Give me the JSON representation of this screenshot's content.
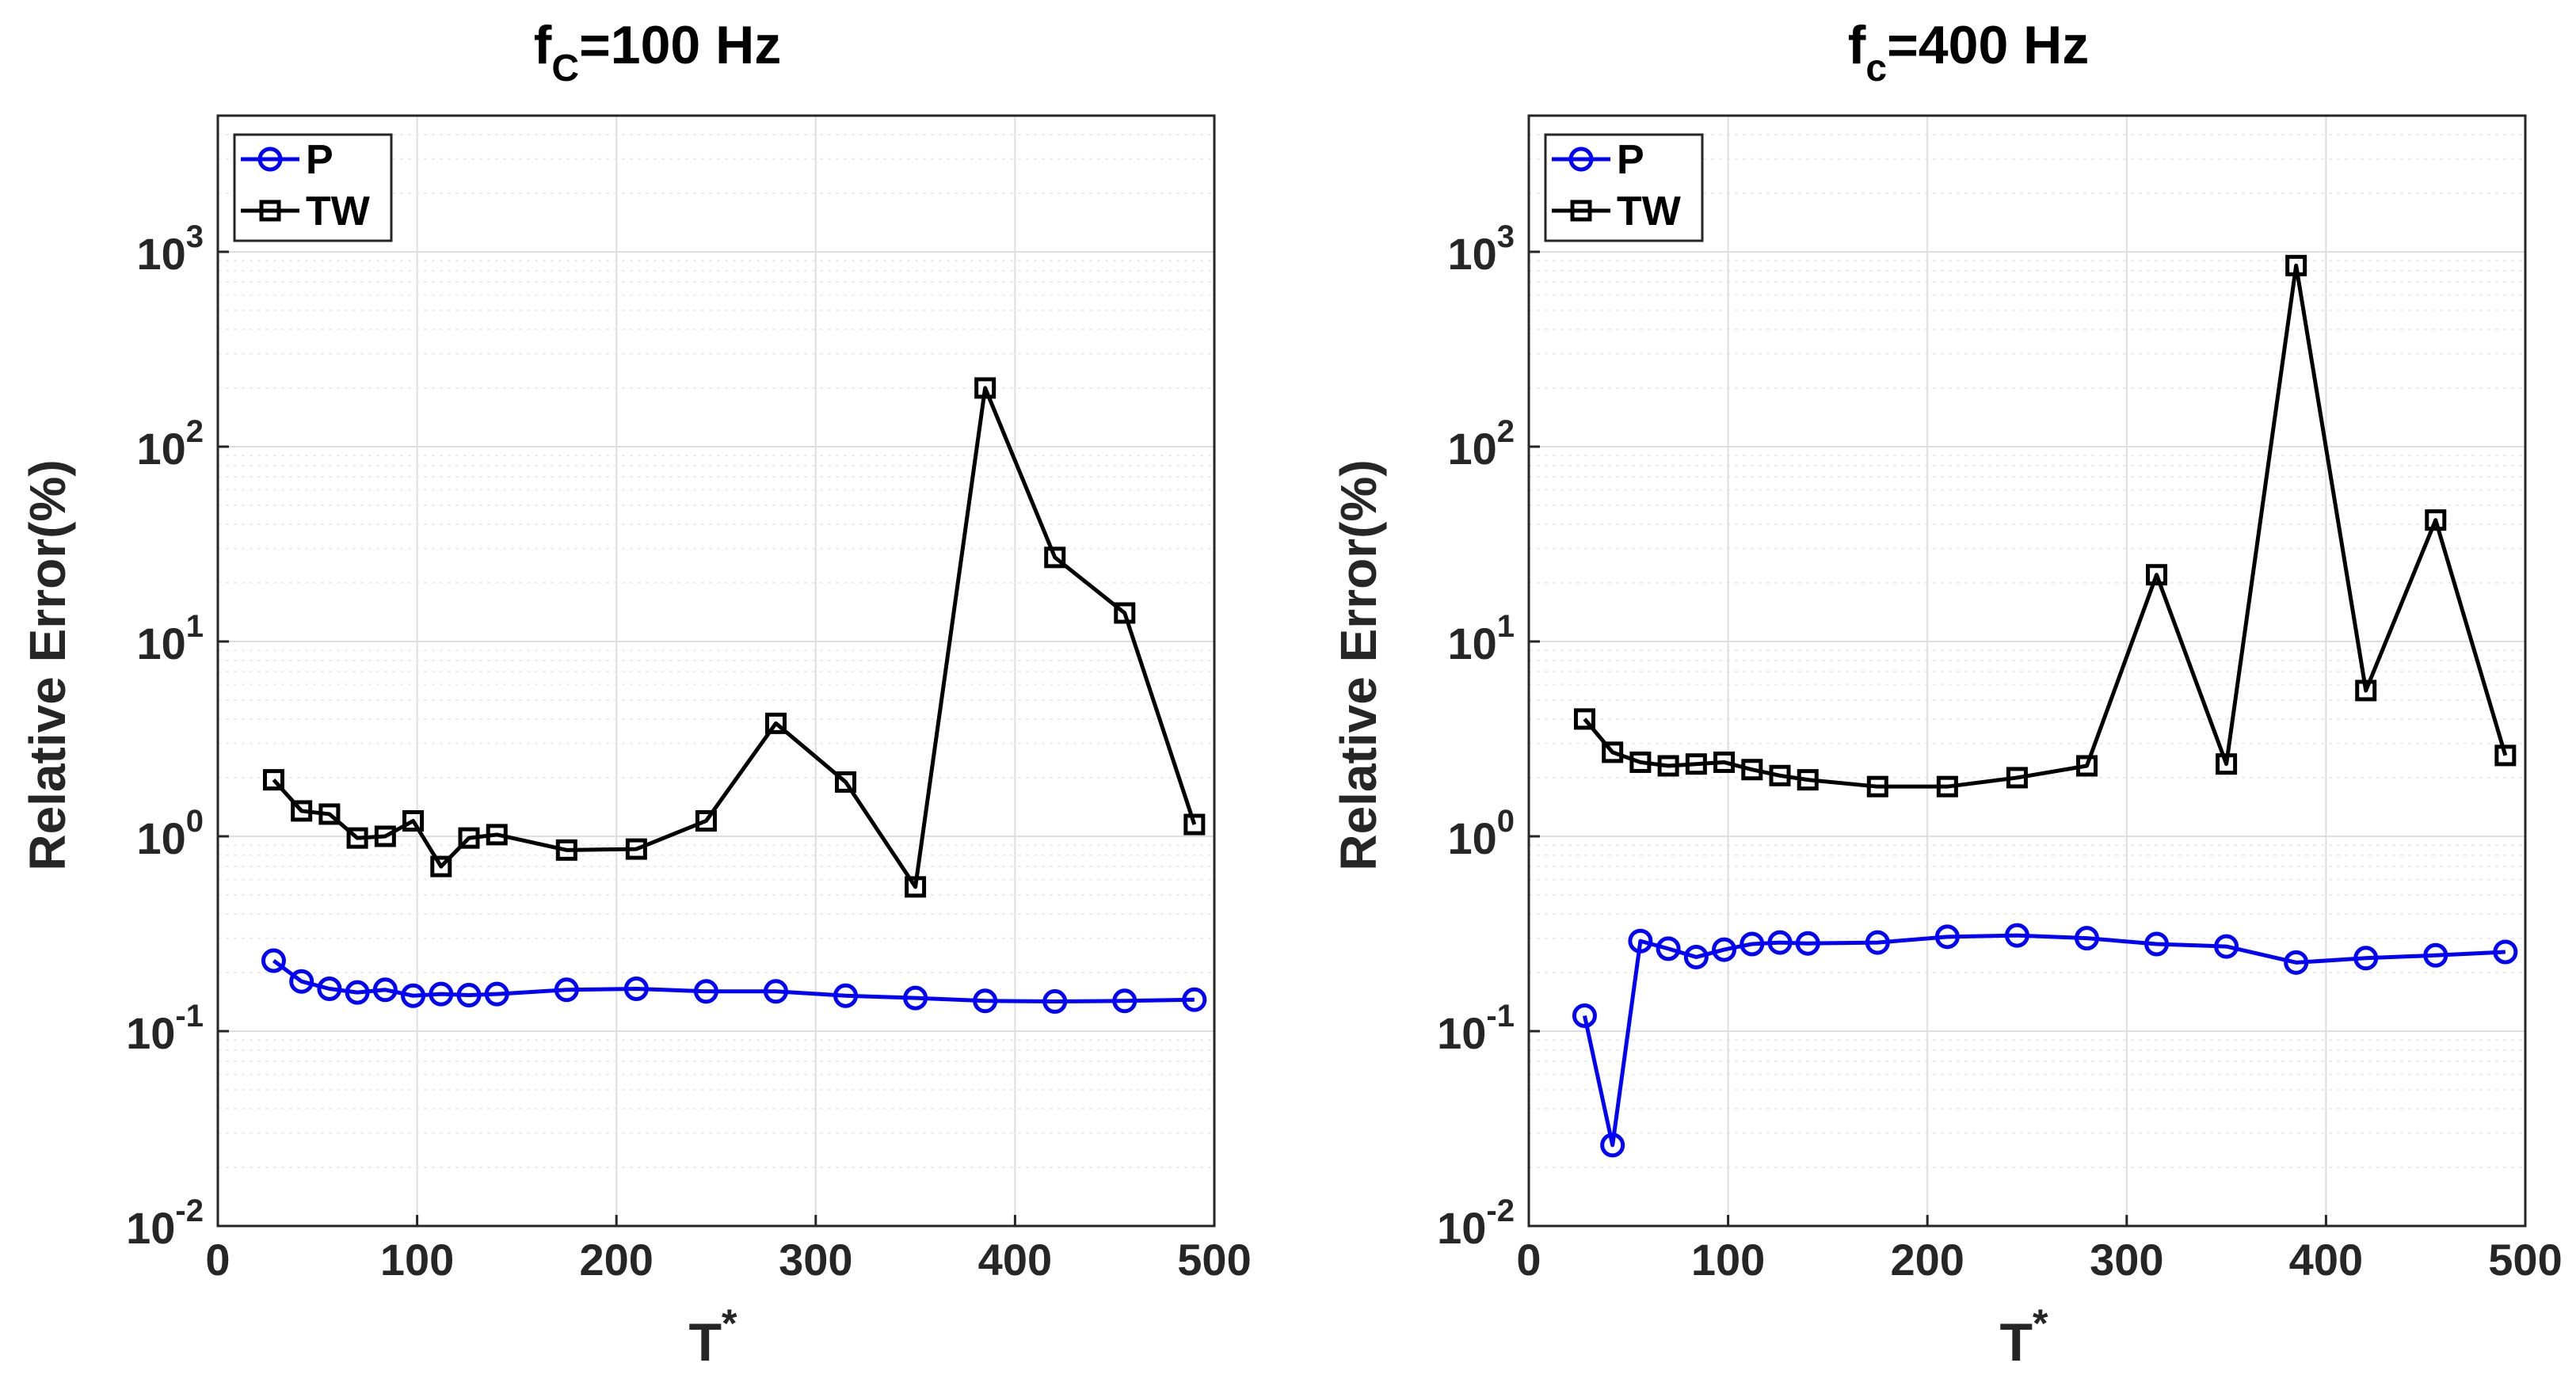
{
  "chart_data": [
    {
      "type": "line",
      "title_main": "f",
      "title_sub": "C",
      "title_rest": "=100 Hz",
      "xlabel_main": "T",
      "xlabel_sup": "*",
      "ylabel": "Relative Error(%)",
      "xlim": [
        0,
        500
      ],
      "ylim": [
        0.01,
        5000
      ],
      "yscale": "log",
      "grid": true,
      "legend_position": "top-left",
      "x_ticks": [
        "0",
        "100",
        "200",
        "300",
        "400",
        "500"
      ],
      "y_ticks": [
        {
          "base": "10",
          "exp": "-2",
          "value": 0.01
        },
        {
          "base": "10",
          "exp": "-1",
          "value": 0.1
        },
        {
          "base": "10",
          "exp": "0",
          "value": 1
        },
        {
          "base": "10",
          "exp": "1",
          "value": 10
        },
        {
          "base": "10",
          "exp": "2",
          "value": 100
        },
        {
          "base": "10",
          "exp": "3",
          "value": 1000
        }
      ],
      "series": [
        {
          "name": "P",
          "color": "#0000ff",
          "marker": "circle",
          "x": [
            28,
            42,
            56,
            70,
            84,
            98,
            112,
            126,
            140,
            175,
            210,
            245,
            280,
            315,
            350,
            385,
            420,
            455,
            490
          ],
          "values": [
            0.23,
            0.18,
            0.165,
            0.158,
            0.163,
            0.152,
            0.155,
            0.153,
            0.155,
            0.163,
            0.165,
            0.16,
            0.16,
            0.152,
            0.148,
            0.143,
            0.142,
            0.143,
            0.145
          ]
        },
        {
          "name": "TW",
          "color": "#000000",
          "marker": "square",
          "x": [
            28,
            42,
            56,
            70,
            84,
            98,
            112,
            126,
            140,
            175,
            210,
            245,
            280,
            315,
            350,
            385,
            420,
            455,
            490
          ],
          "values": [
            1.95,
            1.35,
            1.3,
            0.98,
            1.0,
            1.2,
            0.7,
            0.98,
            1.02,
            0.85,
            0.86,
            1.2,
            3.8,
            1.9,
            0.55,
            200,
            27,
            14,
            1.15
          ]
        }
      ]
    },
    {
      "type": "line",
      "title_main": "f",
      "title_sub": "c",
      "title_rest": "=400 Hz",
      "xlabel_main": "T",
      "xlabel_sup": "*",
      "ylabel": "Relative Error(%)",
      "xlim": [
        0,
        500
      ],
      "ylim": [
        0.01,
        5000
      ],
      "yscale": "log",
      "grid": true,
      "legend_position": "top-left",
      "x_ticks": [
        "0",
        "100",
        "200",
        "300",
        "400",
        "500"
      ],
      "y_ticks": [
        {
          "base": "10",
          "exp": "-2",
          "value": 0.01
        },
        {
          "base": "10",
          "exp": "-1",
          "value": 0.1
        },
        {
          "base": "10",
          "exp": "0",
          "value": 1
        },
        {
          "base": "10",
          "exp": "1",
          "value": 10
        },
        {
          "base": "10",
          "exp": "2",
          "value": 100
        },
        {
          "base": "10",
          "exp": "3",
          "value": 1000
        }
      ],
      "series": [
        {
          "name": "P",
          "color": "#0000ff",
          "marker": "circle",
          "x": [
            28,
            42,
            56,
            70,
            84,
            98,
            112,
            126,
            140,
            175,
            210,
            245,
            280,
            315,
            350,
            385,
            420,
            455,
            490
          ],
          "values": [
            0.12,
            0.026,
            0.29,
            0.265,
            0.24,
            0.262,
            0.28,
            0.285,
            0.282,
            0.285,
            0.305,
            0.31,
            0.3,
            0.28,
            0.272,
            0.225,
            0.237,
            0.245,
            0.255
          ]
        },
        {
          "name": "TW",
          "color": "#000000",
          "marker": "square",
          "x": [
            28,
            42,
            56,
            70,
            84,
            98,
            112,
            126,
            140,
            175,
            210,
            245,
            280,
            315,
            350,
            385,
            420,
            455,
            490
          ],
          "values": [
            4.0,
            2.7,
            2.4,
            2.3,
            2.35,
            2.4,
            2.2,
            2.05,
            1.95,
            1.8,
            1.8,
            2.0,
            2.3,
            22,
            2.35,
            850,
            5.6,
            42,
            2.6
          ]
        }
      ]
    }
  ]
}
